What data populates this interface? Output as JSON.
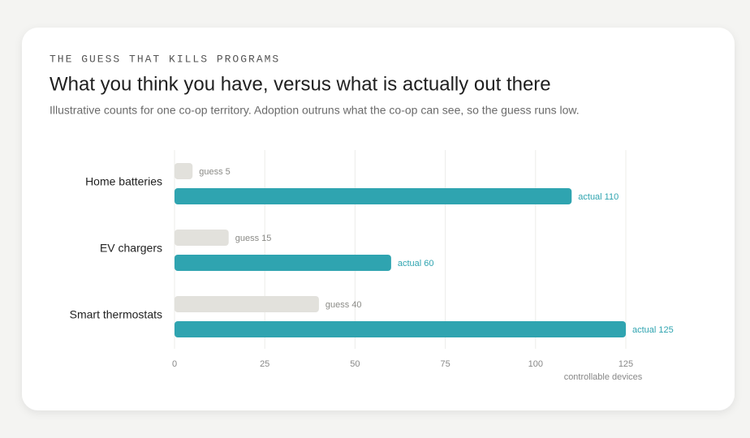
{
  "chart_data": {
    "type": "hbar",
    "eyebrow": "THE GUESS THAT KILLS PROGRAMS",
    "title": "What you think you have, versus what is actually out there",
    "subtitle": "Illustrative counts for one co-op territory. Adoption outruns what the co-op can see, so the guess runs low.",
    "xlabel": "controllable devices",
    "categories": [
      "Home batteries",
      "EV chargers",
      "Smart thermostats"
    ],
    "series": [
      {
        "color": "#e2e1dc",
        "label_color": "#8a8a86",
        "values": [
          5,
          15,
          40
        ],
        "value_labels": [
          "guess 5",
          "guess 15",
          "guess 40"
        ]
      },
      {
        "color": "#2fa4b0",
        "label_color": "#2fa4b0",
        "values": [
          110,
          60,
          125
        ],
        "value_labels": [
          "actual 110",
          "actual 60",
          "actual 125"
        ]
      }
    ],
    "xlim": [
      0,
      125
    ],
    "xticks": [
      0,
      25,
      50,
      75,
      100,
      125
    ],
    "grid": true
  }
}
